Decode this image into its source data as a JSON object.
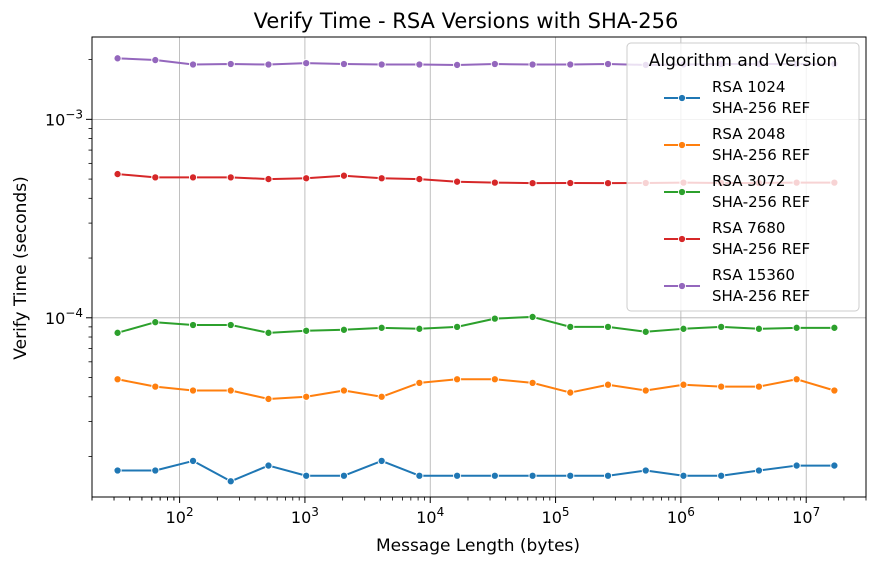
{
  "chart_data": {
    "type": "line",
    "title": "Verify Time - RSA Versions with SHA-256",
    "xlabel": "Message Length (bytes)",
    "ylabel": "Verify Time (seconds)",
    "xscale": "log",
    "yscale": "log",
    "xlim": [
      20,
      30000000
    ],
    "ylim": [
      1.25e-05,
      0.0026
    ],
    "grid": true,
    "legend": {
      "title": "Algorithm and Version",
      "placement": "top-right"
    },
    "x": [
      32,
      64,
      128,
      256,
      512,
      1024,
      2048,
      4096,
      8192,
      16384,
      32768,
      65536,
      131072,
      262144,
      524288,
      1048576,
      2097152,
      4194304,
      8388608,
      16777216
    ],
    "series": [
      {
        "name": "RSA 1024\nSHA-256 REF",
        "color": "#1f77b4",
        "values": [
          1.7e-05,
          1.7e-05,
          1.9e-05,
          1.5e-05,
          1.8e-05,
          1.6e-05,
          1.6e-05,
          1.9e-05,
          1.6e-05,
          1.6e-05,
          1.6e-05,
          1.6e-05,
          1.6e-05,
          1.6e-05,
          1.7e-05,
          1.6e-05,
          1.6e-05,
          1.7e-05,
          1.8e-05,
          1.8e-05
        ]
      },
      {
        "name": "RSA 2048\nSHA-256 REF",
        "color": "#ff7f0e",
        "values": [
          4.9e-05,
          4.5e-05,
          4.3e-05,
          4.3e-05,
          3.9e-05,
          4e-05,
          4.3e-05,
          4e-05,
          4.7e-05,
          4.9e-05,
          4.9e-05,
          4.7e-05,
          4.2e-05,
          4.6e-05,
          4.3e-05,
          4.6e-05,
          4.5e-05,
          4.5e-05,
          4.9e-05,
          4.3e-05
        ]
      },
      {
        "name": "RSA 3072\nSHA-256 REF",
        "color": "#2ca02c",
        "values": [
          8.4e-05,
          9.5e-05,
          9.2e-05,
          9.2e-05,
          8.4e-05,
          8.6e-05,
          8.7e-05,
          8.9e-05,
          8.8e-05,
          9e-05,
          9.9e-05,
          0.000101,
          9e-05,
          9e-05,
          8.5e-05,
          8.8e-05,
          9e-05,
          8.8e-05,
          8.9e-05,
          8.9e-05
        ]
      },
      {
        "name": "RSA 7680\nSHA-256 REF",
        "color": "#d62728",
        "values": [
          0.00053,
          0.00051,
          0.00051,
          0.00051,
          0.0005,
          0.000505,
          0.00052,
          0.000505,
          0.0005,
          0.000485,
          0.00048,
          0.000477,
          0.000478,
          0.000477,
          0.000478,
          0.00048,
          0.000478,
          0.000478,
          0.00048,
          0.00048
        ]
      },
      {
        "name": "RSA 15360\nSHA-256 REF",
        "color": "#9467bd",
        "values": [
          0.00203,
          0.00199,
          0.00189,
          0.0019,
          0.00189,
          0.00192,
          0.0019,
          0.00189,
          0.00189,
          0.00188,
          0.0019,
          0.00189,
          0.00189,
          0.0019,
          0.00188,
          0.00189,
          0.0019,
          0.0019,
          0.0019,
          0.0019
        ]
      }
    ],
    "x_ticks": [
      {
        "value": 100,
        "base": "10",
        "exp": "2"
      },
      {
        "value": 1000,
        "base": "10",
        "exp": "3"
      },
      {
        "value": 10000,
        "base": "10",
        "exp": "4"
      },
      {
        "value": 100000,
        "base": "10",
        "exp": "5"
      },
      {
        "value": 1000000,
        "base": "10",
        "exp": "6"
      },
      {
        "value": 10000000,
        "base": "10",
        "exp": "7"
      }
    ],
    "y_ticks": [
      {
        "value": 0.0001,
        "base": "10",
        "exp": "−4"
      },
      {
        "value": 0.001,
        "base": "10",
        "exp": "−3"
      }
    ]
  }
}
